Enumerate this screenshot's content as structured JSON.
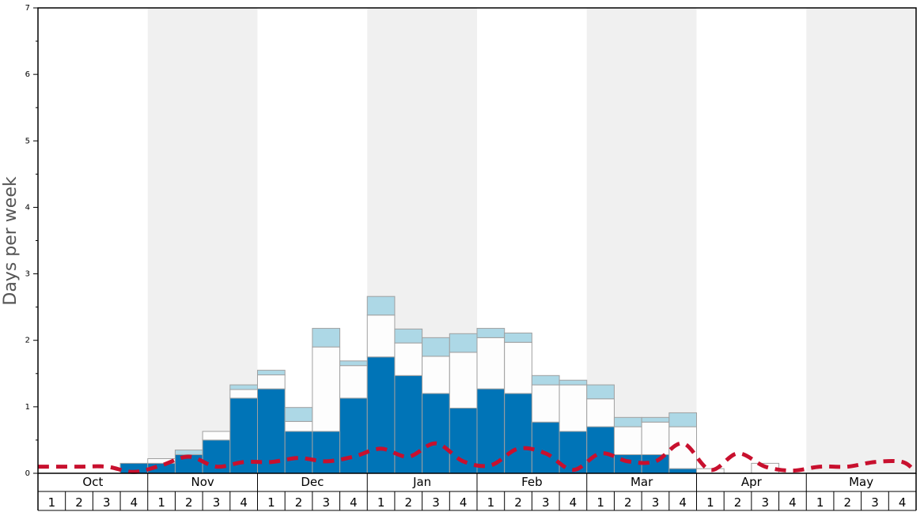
{
  "colors": {
    "bar_dark": "#0074b7",
    "bar_white": "#fdfdfd",
    "bar_light": "#add8e6",
    "bar_stroke": "#a0a0a0",
    "dashed_line": "#c8102e",
    "band_shade": "#f0f0f0"
  },
  "chart_data": {
    "type": "bar",
    "stacked": true,
    "ylabel": "Days per week",
    "ylim": [
      0,
      7
    ],
    "yticks": [
      0,
      1,
      2,
      3,
      4,
      5,
      6,
      7
    ],
    "grid": false,
    "months": [
      "Oct",
      "Nov",
      "Dec",
      "Jan",
      "Feb",
      "Mar",
      "Apr",
      "May"
    ],
    "week_labels": [
      "1",
      "2",
      "3",
      "4"
    ],
    "shaded_months": [
      "Nov",
      "Jan",
      "Mar",
      "May"
    ],
    "series": [
      {
        "color_key": "bar_dark",
        "values": [
          0,
          0,
          0,
          0.15,
          0.15,
          0.28,
          0.5,
          1.13,
          1.27,
          0.63,
          0.63,
          1.13,
          1.75,
          1.47,
          1.2,
          0.98,
          1.27,
          1.2,
          0.77,
          0.63,
          0.7,
          0.28,
          0.28,
          0.07,
          0,
          0,
          0,
          0,
          0,
          0,
          0,
          0
        ]
      },
      {
        "color_key": "bar_white",
        "values": [
          0,
          0,
          0,
          0,
          0.07,
          0,
          0.13,
          0.13,
          0.21,
          0.15,
          1.27,
          0.49,
          0.63,
          0.49,
          0.56,
          0.84,
          0.77,
          0.77,
          0.56,
          0.7,
          0.42,
          0.42,
          0.49,
          0.63,
          0.07,
          0,
          0.15,
          0,
          0,
          0,
          0,
          0
        ]
      },
      {
        "color_key": "bar_light",
        "values": [
          0,
          0,
          0,
          0,
          0,
          0.07,
          0,
          0.07,
          0.07,
          0.21,
          0.28,
          0.07,
          0.28,
          0.21,
          0.28,
          0.28,
          0.14,
          0.14,
          0.14,
          0.07,
          0.21,
          0.14,
          0.07,
          0.21,
          0,
          0,
          0,
          0,
          0,
          0,
          0,
          0
        ]
      }
    ],
    "line": {
      "style": "dashed",
      "values": [
        0.1,
        0.1,
        0.1,
        0.02,
        0.12,
        0.25,
        0.1,
        0.17,
        0.17,
        0.23,
        0.18,
        0.25,
        0.37,
        0.25,
        0.45,
        0.18,
        0.12,
        0.37,
        0.3,
        0.05,
        0.3,
        0.18,
        0.18,
        0.45,
        0.05,
        0.3,
        0.1,
        0.04,
        0.1,
        0.1,
        0.17,
        0.17
      ]
    }
  }
}
